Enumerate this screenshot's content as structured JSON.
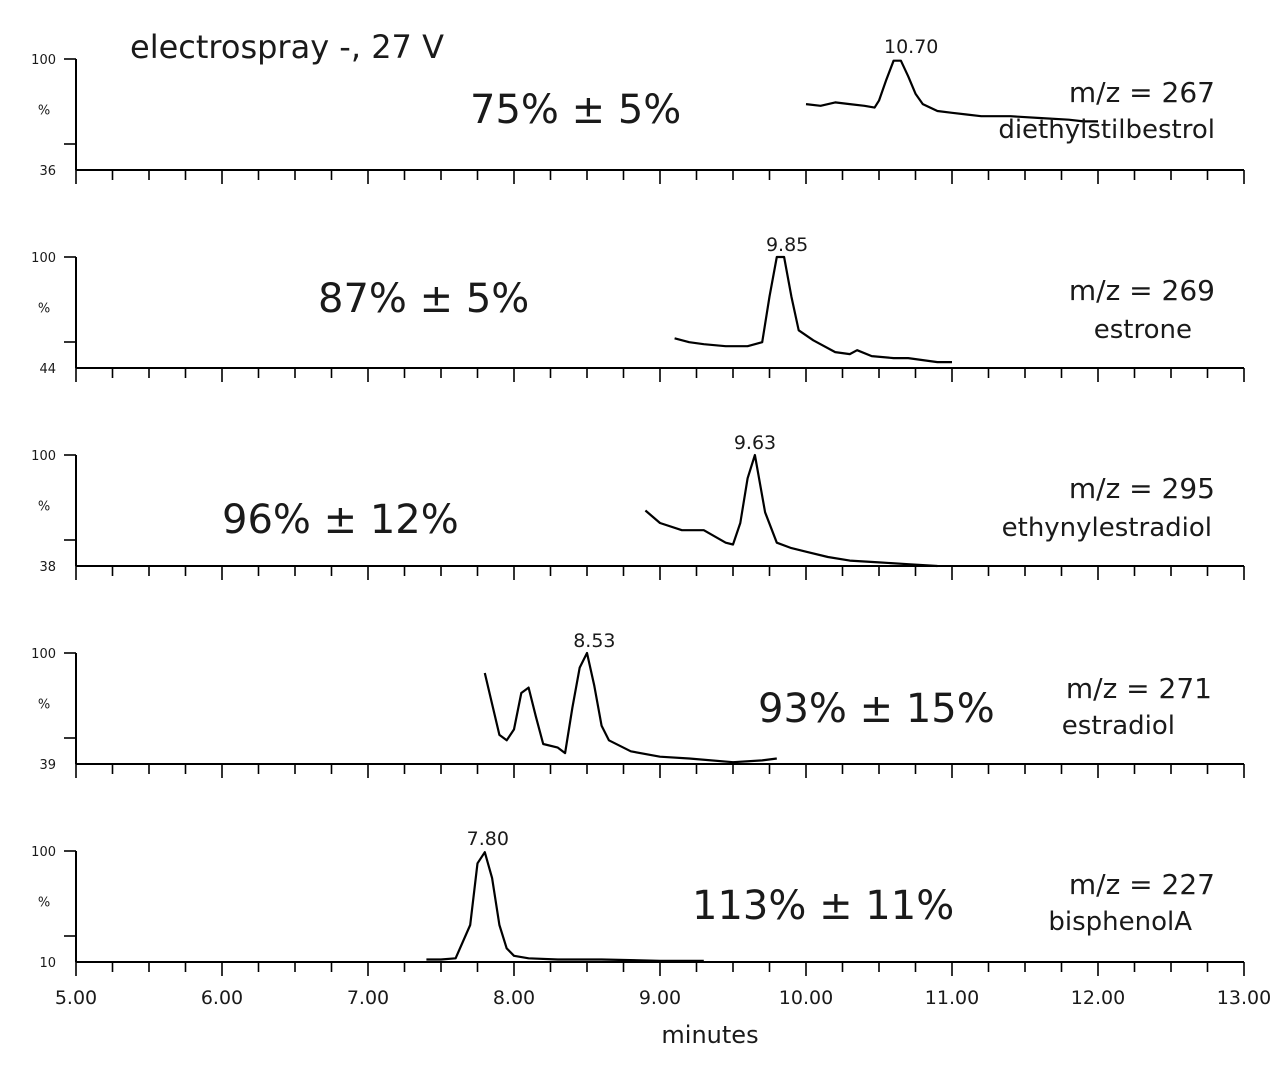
{
  "chart_data": {
    "type": "line",
    "header": "electrospray -, 27 V",
    "xlabel": "minutes",
    "xlim": [
      5.0,
      13.0
    ],
    "x_ticks": [
      "5.00",
      "6.00",
      "7.00",
      "8.00",
      "9.00",
      "10.00",
      "11.00",
      "12.00",
      "13.00"
    ],
    "panels": [
      {
        "compound": "diethylstilbestrol",
        "mz": "m/z = 267",
        "recovery": "75% ± 5%",
        "ymin_label": "36",
        "ymax_label": "100",
        "ymid_label": "%",
        "ylim": [
          36,
          100
        ],
        "peak_label": "10.70",
        "peak_time": 10.7,
        "trace": [
          [
            10.0,
            74
          ],
          [
            10.1,
            73
          ],
          [
            10.2,
            75
          ],
          [
            10.3,
            74
          ],
          [
            10.4,
            73
          ],
          [
            10.47,
            72
          ],
          [
            10.5,
            76
          ],
          [
            10.55,
            88
          ],
          [
            10.6,
            99
          ],
          [
            10.65,
            99
          ],
          [
            10.7,
            90
          ],
          [
            10.75,
            80
          ],
          [
            10.8,
            74
          ],
          [
            10.9,
            70
          ],
          [
            11.0,
            69
          ],
          [
            11.1,
            68
          ],
          [
            11.2,
            67
          ],
          [
            11.4,
            67
          ],
          [
            11.6,
            66
          ],
          [
            11.8,
            65
          ],
          [
            11.9,
            64
          ],
          [
            12.0,
            64
          ]
        ]
      },
      {
        "compound": "estrone",
        "mz": "m/z = 269",
        "recovery": "87% ± 5%",
        "ymin_label": "44",
        "ymax_label": "100",
        "ymid_label": "%",
        "ylim": [
          44,
          100
        ],
        "peak_label": "9.85",
        "peak_time": 9.85,
        "trace": [
          [
            9.1,
            59
          ],
          [
            9.2,
            57
          ],
          [
            9.3,
            56
          ],
          [
            9.45,
            55
          ],
          [
            9.6,
            55
          ],
          [
            9.7,
            57
          ],
          [
            9.75,
            80
          ],
          [
            9.8,
            100
          ],
          [
            9.85,
            100
          ],
          [
            9.9,
            80
          ],
          [
            9.95,
            63
          ],
          [
            10.05,
            58
          ],
          [
            10.2,
            52
          ],
          [
            10.3,
            51
          ],
          [
            10.35,
            53
          ],
          [
            10.45,
            50
          ],
          [
            10.6,
            49
          ],
          [
            10.7,
            49
          ],
          [
            10.8,
            48
          ],
          [
            10.9,
            47
          ],
          [
            11.0,
            47
          ]
        ]
      },
      {
        "compound": "ethynylestradiol",
        "mz": "m/z = 295",
        "recovery": "96% ± 12%",
        "ymin_label": "38",
        "ymax_label": "100",
        "ymid_label": "%",
        "ylim": [
          38,
          100
        ],
        "peak_label": "9.63",
        "peak_time": 9.63,
        "trace": [
          [
            8.9,
            69
          ],
          [
            9.0,
            62
          ],
          [
            9.15,
            58
          ],
          [
            9.3,
            58
          ],
          [
            9.45,
            51
          ],
          [
            9.5,
            50
          ],
          [
            9.55,
            62
          ],
          [
            9.6,
            87
          ],
          [
            9.65,
            100
          ],
          [
            9.72,
            68
          ],
          [
            9.8,
            51
          ],
          [
            9.9,
            48
          ],
          [
            10.0,
            46
          ],
          [
            10.15,
            43
          ],
          [
            10.3,
            41
          ],
          [
            10.5,
            40
          ],
          [
            10.7,
            39
          ],
          [
            10.9,
            38
          ]
        ]
      },
      {
        "compound": "estradiol",
        "mz": "m/z = 271",
        "recovery": "93% ± 15%",
        "ymin_label": "39",
        "ymax_label": "100",
        "ymid_label": "%",
        "ylim": [
          39,
          100
        ],
        "peak_label": "8.53",
        "peak_time": 8.53,
        "trace": [
          [
            7.8,
            89
          ],
          [
            7.85,
            72
          ],
          [
            7.9,
            55
          ],
          [
            7.95,
            52
          ],
          [
            8.0,
            58
          ],
          [
            8.05,
            78
          ],
          [
            8.1,
            81
          ],
          [
            8.15,
            65
          ],
          [
            8.2,
            50
          ],
          [
            8.3,
            48
          ],
          [
            8.35,
            45
          ],
          [
            8.4,
            70
          ],
          [
            8.45,
            92
          ],
          [
            8.5,
            100
          ],
          [
            8.55,
            82
          ],
          [
            8.6,
            60
          ],
          [
            8.65,
            52
          ],
          [
            8.8,
            46
          ],
          [
            9.0,
            43
          ],
          [
            9.2,
            42
          ],
          [
            9.5,
            40
          ],
          [
            9.7,
            41
          ],
          [
            9.8,
            42
          ]
        ]
      },
      {
        "compound": "bisphenolA",
        "mz": "m/z = 227",
        "recovery": "113% ± 11%",
        "ymin_label": "10",
        "ymax_label": "100",
        "ymid_label": "%",
        "ylim": [
          10,
          100
        ],
        "peak_label": "7.80",
        "peak_time": 7.8,
        "trace": [
          [
            7.4,
            12
          ],
          [
            7.5,
            12
          ],
          [
            7.6,
            13
          ],
          [
            7.7,
            40
          ],
          [
            7.75,
            90
          ],
          [
            7.8,
            99
          ],
          [
            7.85,
            78
          ],
          [
            7.9,
            40
          ],
          [
            7.95,
            21
          ],
          [
            8.0,
            15
          ],
          [
            8.1,
            13
          ],
          [
            8.3,
            12
          ],
          [
            8.6,
            12
          ],
          [
            9.0,
            11
          ],
          [
            9.3,
            11
          ]
        ]
      }
    ]
  }
}
